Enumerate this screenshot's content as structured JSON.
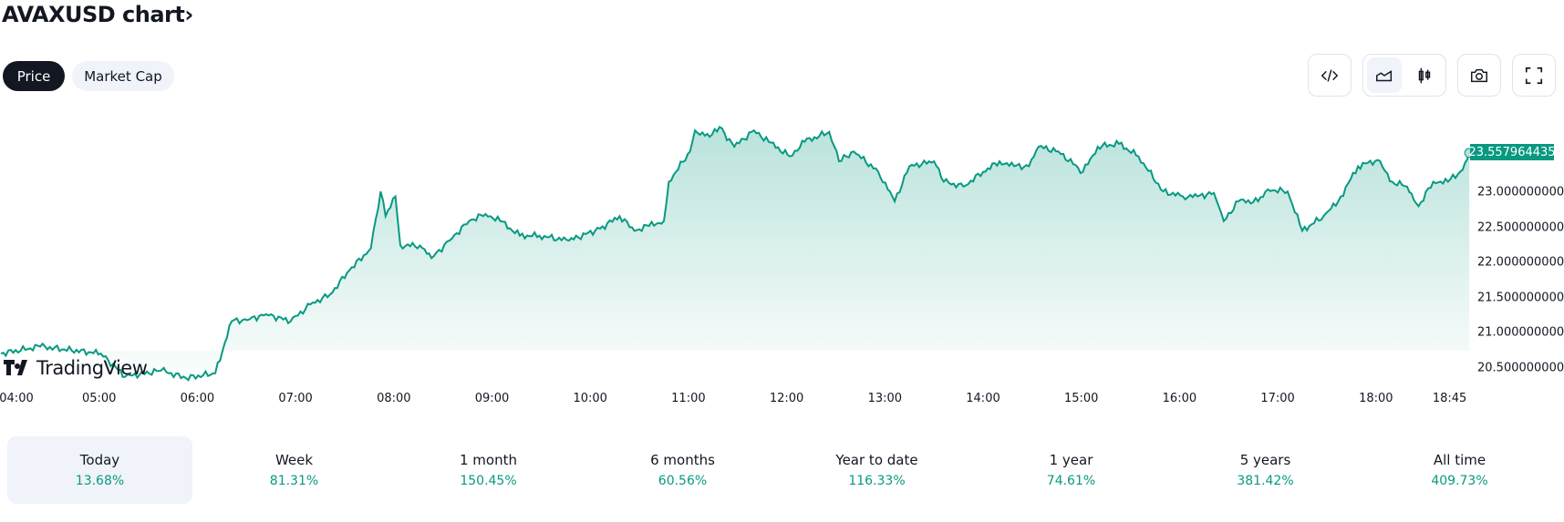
{
  "header": {
    "title": "AVAXUSD chart",
    "chevron": "›"
  },
  "tabs": [
    {
      "label": "Price",
      "active": true
    },
    {
      "label": "Market Cap",
      "active": false
    }
  ],
  "toolbar": {
    "icons": [
      "embed-code-icon",
      "area-chart-icon",
      "candlestick-chart-icon",
      "camera-icon",
      "fullscreen-icon"
    ],
    "selected_chart_type": "area"
  },
  "watermark": "TradingView",
  "colors": {
    "accent": "#089981",
    "dark": "#131722",
    "light_bg": "#f0f3fa"
  },
  "chart_data": {
    "type": "area",
    "symbol": "AVAXUSD",
    "current_price_label": "23.557964435",
    "y_ticks": [
      "23.000000000",
      "22.500000000",
      "22.000000000",
      "21.500000000",
      "21.000000000",
      "20.500000000"
    ],
    "y_tick_values": [
      23.0,
      22.5,
      22.0,
      21.5,
      21.0,
      20.5
    ],
    "x_ticks": [
      "04:00",
      "05:00",
      "06:00",
      "07:00",
      "08:00",
      "09:00",
      "10:00",
      "11:00",
      "12:00",
      "13:00",
      "14:00",
      "15:00",
      "16:00",
      "17:00",
      "18:00",
      "18:45"
    ],
    "x_tick_minutes": [
      0,
      60,
      120,
      180,
      240,
      300,
      360,
      420,
      480,
      540,
      600,
      660,
      720,
      780,
      840,
      885
    ],
    "x_unit": "minutes since 04:00",
    "minutes": [
      0,
      24,
      61,
      76,
      98,
      113,
      131,
      141,
      152,
      162,
      177,
      189,
      201,
      213,
      226,
      232,
      235,
      241,
      244,
      256,
      263,
      274,
      286,
      296,
      305,
      317,
      329,
      347,
      366,
      378,
      387,
      396,
      405,
      408,
      421,
      424,
      433,
      439,
      448,
      460,
      469,
      482,
      491,
      506,
      512,
      521,
      536,
      546,
      555,
      570,
      576,
      588,
      600,
      610,
      619,
      628,
      634,
      646,
      661,
      670,
      683,
      695,
      710,
      722,
      731,
      741,
      747,
      756,
      768,
      774,
      786,
      795,
      808,
      817,
      829,
      841,
      850,
      859,
      866,
      875,
      884,
      893,
      897
    ],
    "prices": [
      20.7,
      20.8,
      20.7,
      20.37,
      20.46,
      20.35,
      20.42,
      21.16,
      21.19,
      21.26,
      21.16,
      21.4,
      21.54,
      21.89,
      22.2,
      23.01,
      22.66,
      22.94,
      22.24,
      22.24,
      22.06,
      22.31,
      22.59,
      22.69,
      22.59,
      22.38,
      22.38,
      22.31,
      22.48,
      22.66,
      22.45,
      22.52,
      22.59,
      23.15,
      23.58,
      23.88,
      23.79,
      23.93,
      23.65,
      23.88,
      23.72,
      23.51,
      23.72,
      23.86,
      23.44,
      23.58,
      23.29,
      22.87,
      23.37,
      23.44,
      23.15,
      23.08,
      23.29,
      23.44,
      23.37,
      23.37,
      23.65,
      23.58,
      23.29,
      23.65,
      23.69,
      23.51,
      23.01,
      22.94,
      22.94,
      22.99,
      22.59,
      22.87,
      22.87,
      23.04,
      23.01,
      22.45,
      22.66,
      22.87,
      23.37,
      23.46,
      23.15,
      23.08,
      22.8,
      23.15,
      23.15,
      23.32,
      23.56
    ]
  },
  "performance": [
    {
      "label": "Today",
      "value": "13.68%",
      "selected": true
    },
    {
      "label": "Week",
      "value": "81.31%"
    },
    {
      "label": "1 month",
      "value": "150.45%"
    },
    {
      "label": "6 months",
      "value": "60.56%"
    },
    {
      "label": "Year to date",
      "value": "116.33%"
    },
    {
      "label": "1 year",
      "value": "74.61%"
    },
    {
      "label": "5 years",
      "value": "381.42%"
    },
    {
      "label": "All time",
      "value": "409.73%"
    }
  ]
}
